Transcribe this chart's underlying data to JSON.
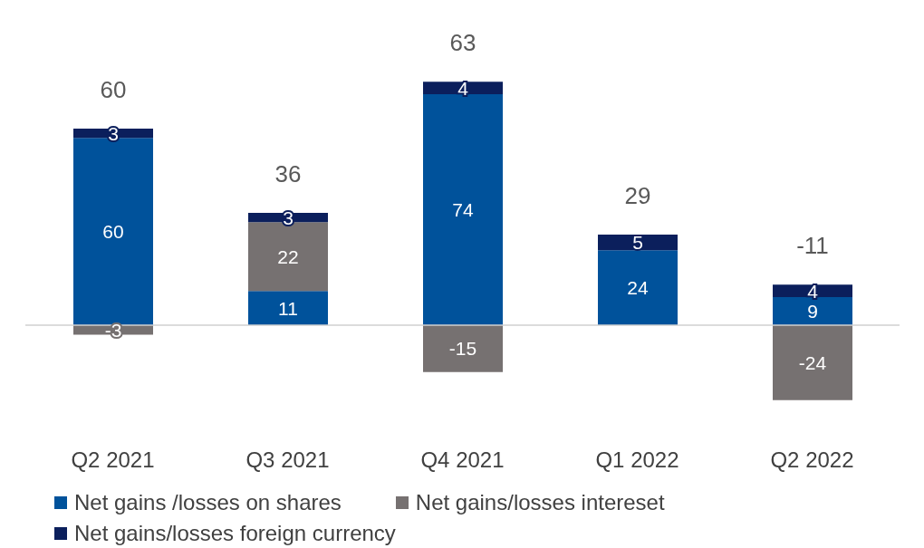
{
  "chart_data": {
    "type": "bar",
    "stacked": true,
    "data_labels": true,
    "legend": "bottom",
    "categories": [
      "Q2 2021",
      "Q3 2021",
      "Q4 2021",
      "Q1 2022",
      "Q2 2022"
    ],
    "series": [
      {
        "name": "Net gains /losses on shares",
        "color": "#00529b",
        "values": [
          60,
          11,
          74,
          24,
          9
        ]
      },
      {
        "name": "Net gains/losses intereset",
        "color": "#767171",
        "values": [
          -3,
          22,
          -15,
          null,
          -24
        ]
      },
      {
        "name": "Net gains/losses foreign currency",
        "color": "#0b1f5c",
        "values": [
          3,
          3,
          4,
          5,
          4
        ]
      }
    ],
    "totals": [
      "60",
      "36",
      "63",
      "29",
      "-11"
    ]
  }
}
